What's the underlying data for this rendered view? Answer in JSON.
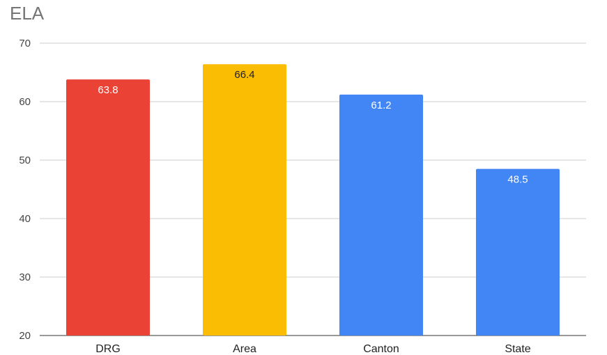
{
  "chart_data": {
    "type": "bar",
    "title": "ELA",
    "categories": [
      "DRG",
      "Area",
      "Canton",
      "State"
    ],
    "values": [
      63.8,
      66.4,
      61.2,
      48.5
    ],
    "value_labels": [
      "63.8",
      "66.4",
      "61.2",
      "48.5"
    ],
    "colors": [
      "#EA4335",
      "#FBBC04",
      "#4285F4",
      "#4285F4"
    ],
    "label_colors": [
      "#ffffff",
      "#222222",
      "#ffffff",
      "#ffffff"
    ],
    "ylim": [
      20,
      70
    ],
    "yticks": [
      20,
      30,
      40,
      50,
      60,
      70
    ],
    "ytick_labels": [
      "20",
      "30",
      "40",
      "50",
      "60",
      "70"
    ],
    "grid": true,
    "xlabel": "",
    "ylabel": ""
  }
}
